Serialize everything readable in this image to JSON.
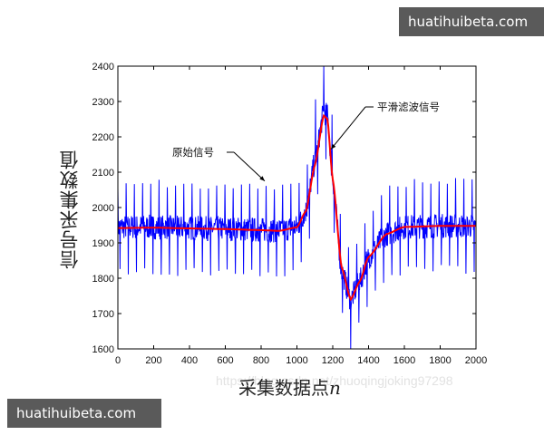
{
  "badges": {
    "top": "huatihuibeta.com",
    "bottom": "huatihuibeta.com"
  },
  "watermark": "https://blog.csdn.net/zhuoqingjoking97298",
  "chart_data": {
    "type": "line",
    "title": "",
    "xlabel": "采集数据点",
    "xlabel_var": "n",
    "ylabel": "信号采集数值",
    "xlim": [
      0,
      2000
    ],
    "ylim": [
      1600,
      2400
    ],
    "xticks": [
      0,
      200,
      400,
      600,
      800,
      1000,
      1200,
      1400,
      1600,
      1800,
      2000
    ],
    "yticks": [
      1600,
      1700,
      1800,
      1900,
      2000,
      2100,
      2200,
      2300,
      2400
    ],
    "grid": false,
    "series": [
      {
        "name": "原始信号",
        "color": "#0000ff",
        "style": "noisy periodic spikes (~±130 amplitude) around smoothed baseline",
        "spike_amplitude": 130,
        "x": [
          0,
          200,
          400,
          600,
          800,
          900,
          1000,
          1050,
          1100,
          1150,
          1170,
          1200,
          1250,
          1300,
          1350,
          1400,
          1500,
          1600,
          1800,
          2000
        ],
        "y": [
          1945,
          1945,
          1942,
          1940,
          1937,
          1935,
          1945,
          1990,
          2130,
          2270,
          2260,
          2080,
          1820,
          1740,
          1790,
          1860,
          1925,
          1945,
          1948,
          1948
        ]
      },
      {
        "name": "平滑滤波信号",
        "color": "#ff0000",
        "x": [
          0,
          200,
          400,
          600,
          800,
          900,
          1000,
          1050,
          1100,
          1150,
          1170,
          1200,
          1250,
          1300,
          1350,
          1400,
          1500,
          1600,
          1800,
          2000
        ],
        "y": [
          1942,
          1943,
          1941,
          1939,
          1936,
          1934,
          1944,
          1990,
          2120,
          2260,
          2250,
          2080,
          1830,
          1740,
          1790,
          1860,
          1925,
          1945,
          1948,
          1948
        ]
      }
    ],
    "annotations": [
      {
        "text": "原始信号",
        "target_x": 820,
        "target_y": 2075
      },
      {
        "text": "平滑滤波信号",
        "target_x": 1190,
        "target_y": 2165
      }
    ]
  }
}
